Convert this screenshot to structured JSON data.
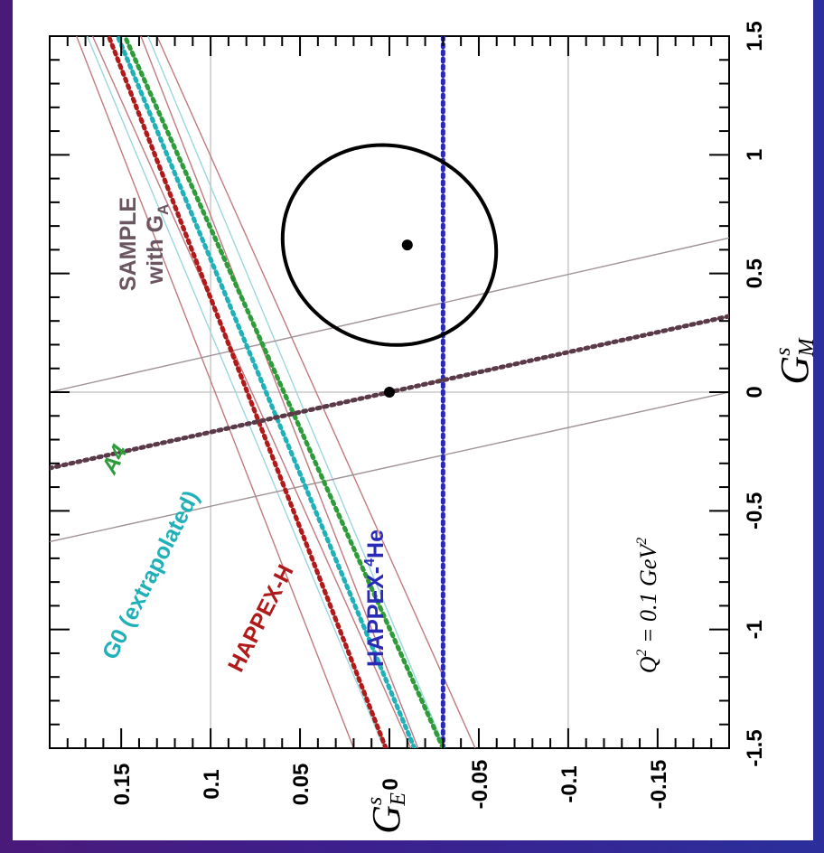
{
  "chart_data": {
    "type": "scatter",
    "title": "",
    "xlabel": "G",
    "xlabel_sub": "M",
    "xlabel_sup": "s",
    "ylabel": "G",
    "ylabel_sub": "E",
    "ylabel_sup": "s",
    "xlim": [
      -1.5,
      1.5
    ],
    "ylim": [
      -0.19,
      0.19
    ],
    "xticks": [
      -1.5,
      -1,
      -0.5,
      0,
      0.5,
      1,
      1.5
    ],
    "xtick_labels": [
      "-1.5",
      "-1",
      "-0.5",
      "0",
      "0.5",
      "1",
      "1.5"
    ],
    "yticks": [
      0.15,
      0.1,
      0.05,
      0,
      -0.05,
      -0.1,
      -0.15
    ],
    "ytick_labels": [
      "0.15",
      "0.1",
      "0.05",
      "0",
      "-0.05",
      "-0.1",
      "-0.15"
    ],
    "grid_x": [
      0
    ],
    "grid_y": [
      0.1,
      -0.1
    ],
    "annotation": {
      "q": "Q",
      "q_sup": "2",
      "eq": " = 0.1 GeV",
      "unit_sup": "2"
    },
    "labels": [
      {
        "id": "sample",
        "line1": "SAMPLE",
        "line2": "with G",
        "line2_sub": "A",
        "color": "#6b5560"
      },
      {
        "id": "a4",
        "text": "A4",
        "color": "#2e9c3a"
      },
      {
        "id": "g0",
        "text": "G0 (extrapolated)",
        "color": "#20b0b8"
      },
      {
        "id": "happexh",
        "text": "HAPPEX-H",
        "color": "#b01a1a"
      },
      {
        "id": "happexhe",
        "text_pre": "HAPPEX-",
        "text_sup": "4",
        "text_post": "He",
        "color": "#2a2ab8"
      }
    ],
    "series": [
      {
        "id": "happex-he",
        "color": "#2a2ab8",
        "central": [
          [
            -1.5,
            -0.03
          ],
          [
            1.5,
            -0.03
          ]
        ],
        "band": []
      },
      {
        "id": "happex-h",
        "color": "#b01a1a",
        "central": [
          [
            -1.5,
            0.002
          ],
          [
            1.5,
            0.157
          ]
        ],
        "band": [
          [
            [
              -1.5,
              -0.016
            ],
            [
              1.5,
              0.139
            ]
          ],
          [
            [
              -1.5,
              0.02
            ],
            [
              1.5,
              0.175
            ]
          ]
        ]
      },
      {
        "id": "g0",
        "color": "#20b0b8",
        "central": [
          [
            -1.5,
            -0.014
          ],
          [
            1.5,
            0.152
          ]
        ],
        "band": [
          [
            [
              -1.5,
              -0.031
            ],
            [
              1.5,
              0.135
            ]
          ],
          [
            [
              -1.5,
              0.003
            ],
            [
              1.5,
              0.169
            ]
          ]
        ]
      },
      {
        "id": "a4",
        "color": "#2e9c3a",
        "central": [
          [
            -1.5,
            -0.03
          ],
          [
            1.5,
            0.148
          ]
        ],
        "band": [
          [
            [
              -1.5,
              -0.048
            ],
            [
              1.5,
              0.13
            ]
          ],
          [
            [
              -1.5,
              -0.012
            ],
            [
              1.5,
              0.166
            ]
          ]
        ]
      },
      {
        "id": "sample",
        "color": "#5a3a48",
        "central": [
          [
            0.32,
            -0.19
          ],
          [
            -0.32,
            0.19
          ]
        ],
        "band": [
          [
            [
              0.65,
              -0.19
            ],
            [
              0.0,
              0.19
            ]
          ],
          [
            [
              0.0,
              -0.19
            ],
            [
              -0.63,
              0.19
            ]
          ]
        ]
      }
    ],
    "band_color": "#c07a80",
    "ellipse": {
      "cx": 0.62,
      "cy": 0.0,
      "rx": 0.83,
      "ry": 0.121,
      "rotation_deg": 67.5,
      "color": "#000000"
    },
    "points": [
      [
        0.0,
        0.0
      ],
      [
        0.62,
        -0.01
      ]
    ]
  }
}
